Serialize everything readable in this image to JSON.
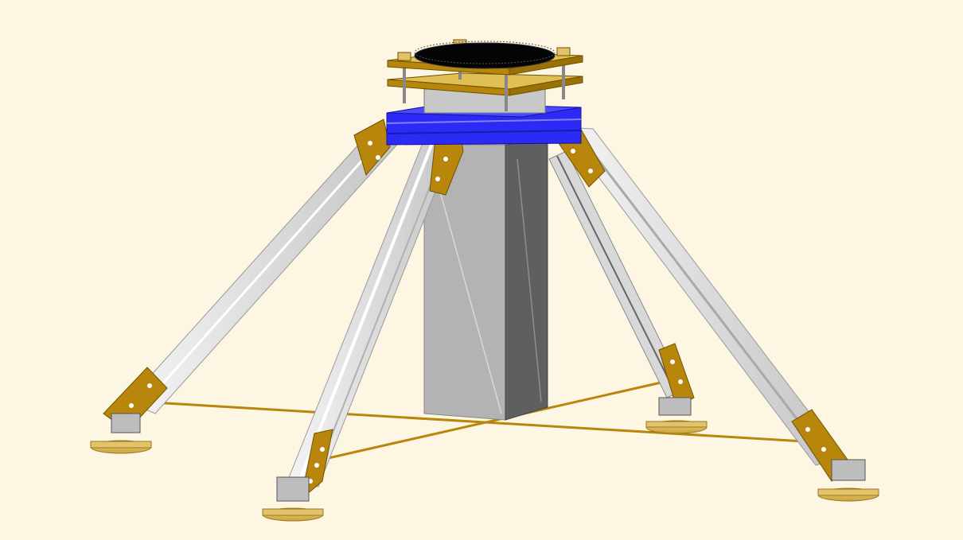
{
  "scene": {
    "background_color": "#fdf6e3",
    "colors": {
      "brass": "#b8860b",
      "brass_light": "#e6c560",
      "aluminum": "#e4e4e4",
      "blue_frame": "#2b2bf5",
      "pillar_light": "#b0b0b0",
      "pillar_dark": "#5e5e5e",
      "ring": "#050505",
      "foot": "#e3c36a"
    }
  }
}
